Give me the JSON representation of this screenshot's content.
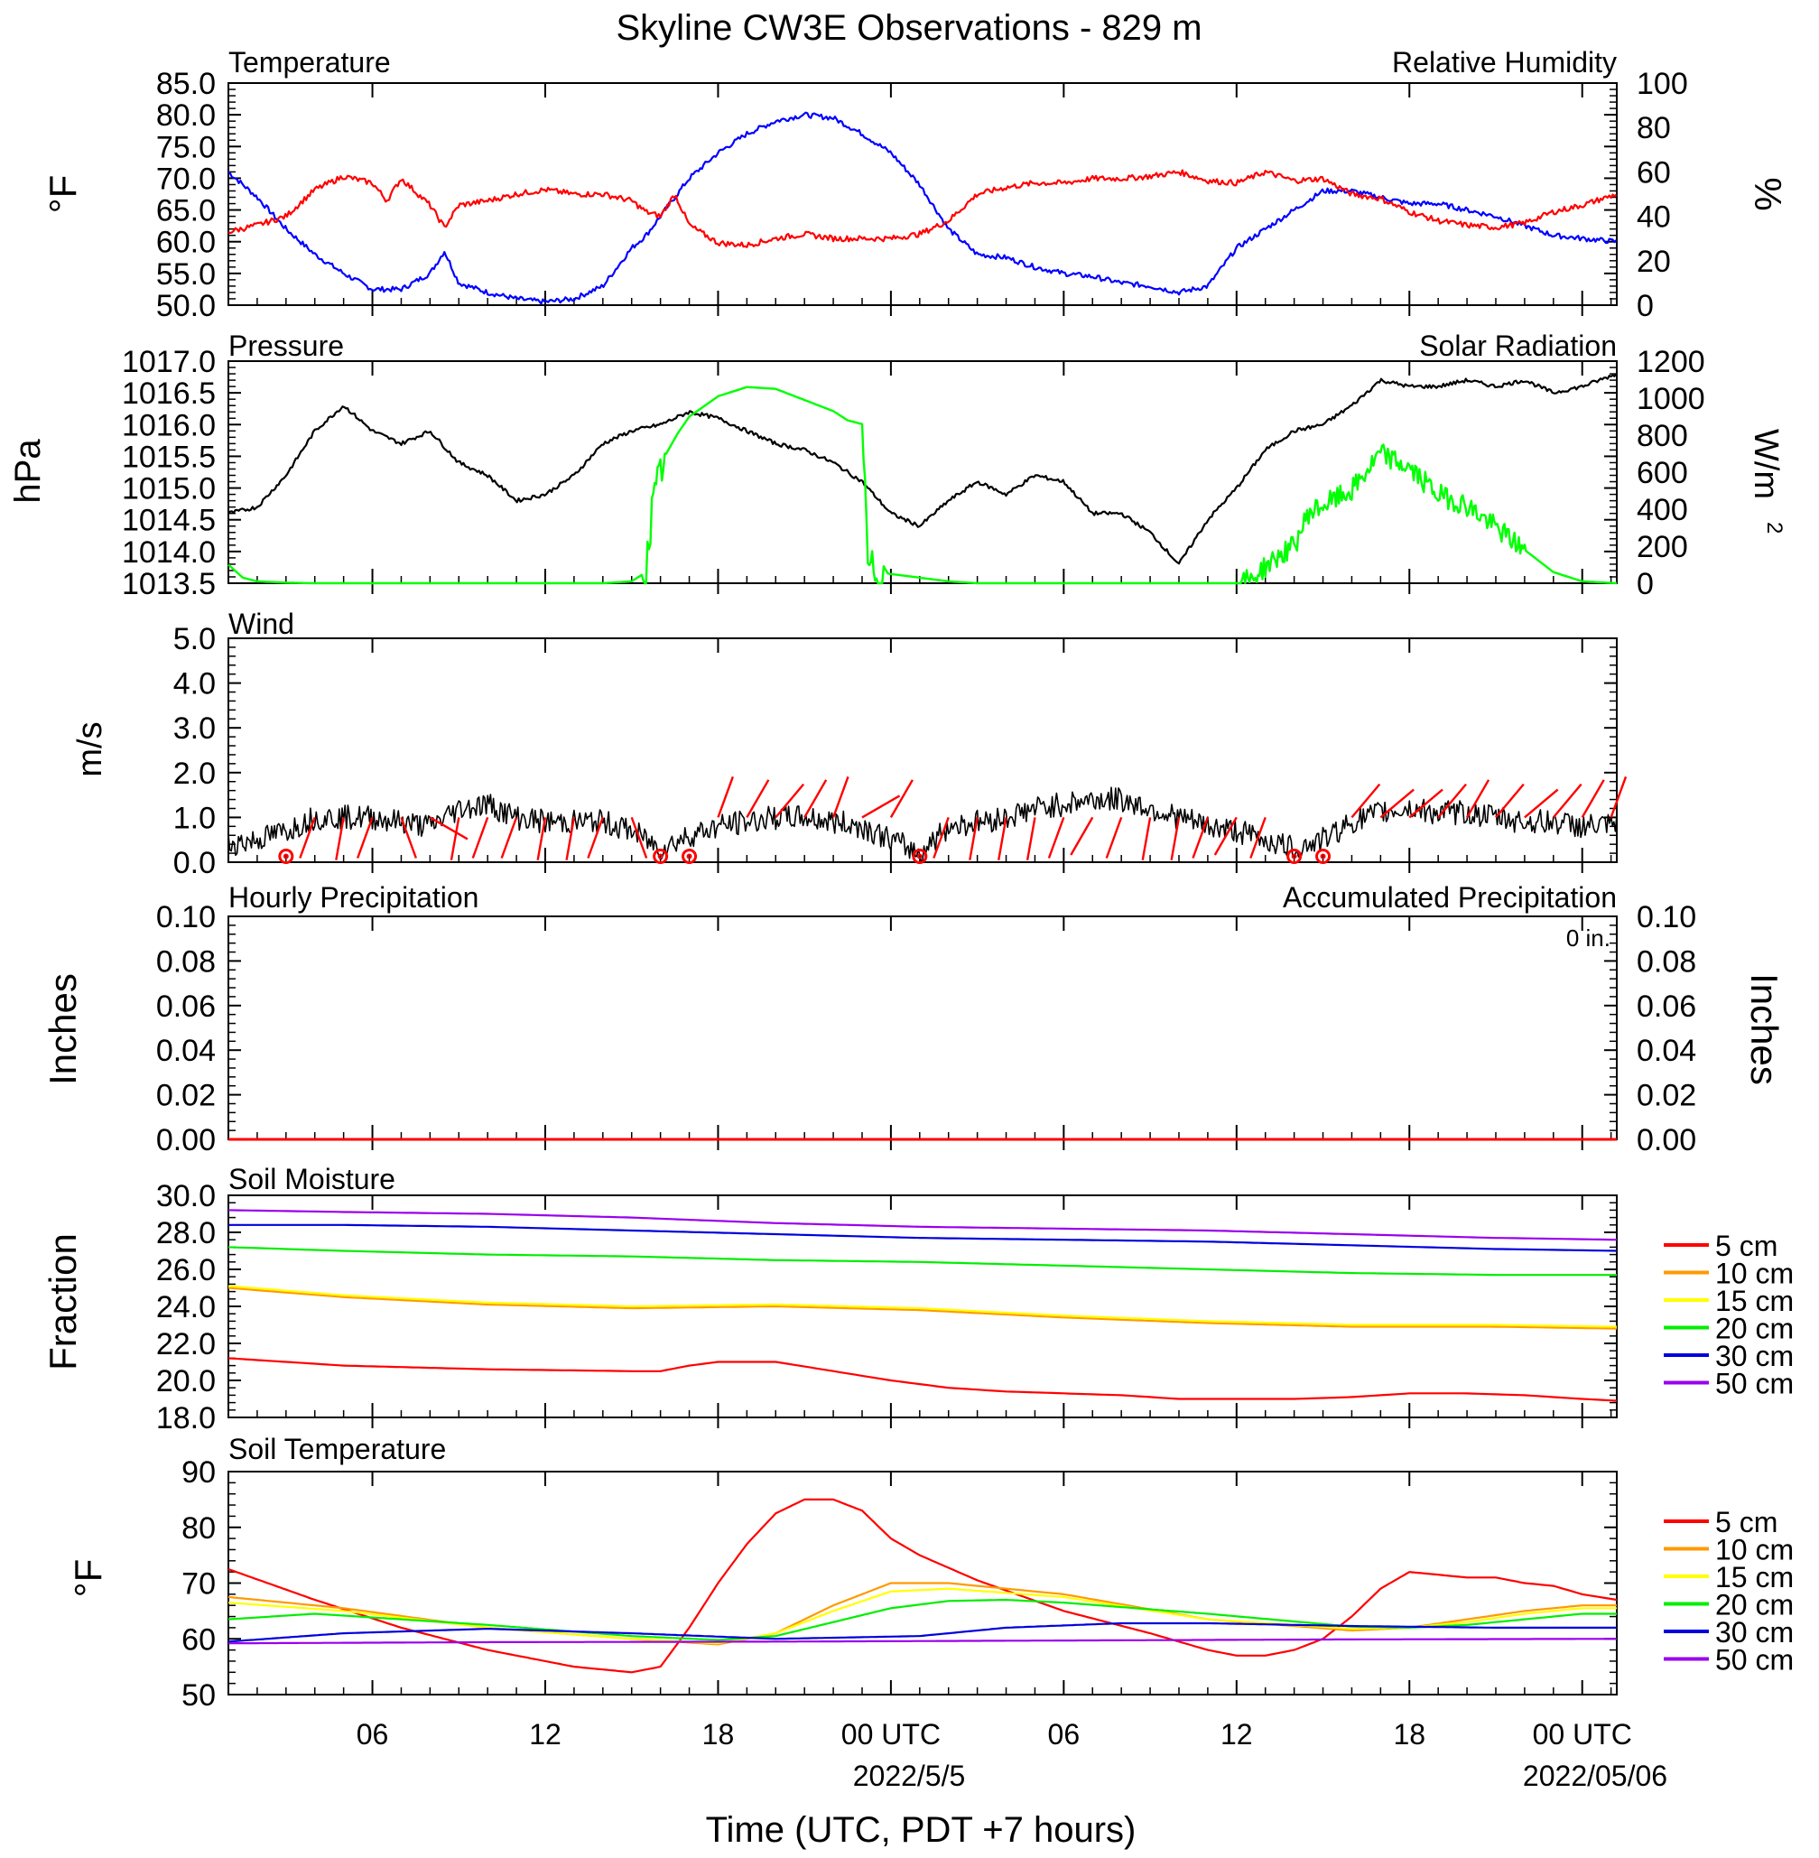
{
  "title": "Skyline CW3E Observations - 829 m",
  "xaxis": {
    "tick_labels": [
      "06",
      "12",
      "18",
      "00 UTC",
      "06",
      "12",
      "18",
      "00 UTC"
    ],
    "date_labels": [
      "2022/5/5",
      "2022/05/06"
    ],
    "label": "Time (UTC, PDT +7 hours)"
  },
  "colors": {
    "temperature": "#0000ff",
    "humidity": "#ff0000",
    "pressure": "#000000",
    "solar": "#00ff00",
    "wind": "#000000",
    "barb": "#ff0000",
    "hourly_precip": "#0000ff",
    "accum_precip": "#ff0000",
    "d5": "#ff0000",
    "d10": "#ff9900",
    "d15": "#ffff00",
    "d20": "#00ee00",
    "d30": "#0000dd",
    "d50": "#9900ee"
  },
  "panels": {
    "temp": {
      "left_title": "Temperature",
      "right_title": "Relative Humidity",
      "left_unit": "°F",
      "right_unit": "%",
      "left_ticks": [
        "85.0",
        "80.0",
        "75.0",
        "70.0",
        "65.0",
        "60.0",
        "55.0",
        "50.0"
      ],
      "right_ticks": [
        "100",
        "80",
        "60",
        "40",
        "20",
        "0"
      ]
    },
    "pres": {
      "left_title": "Pressure",
      "right_title": "Solar Radiation",
      "left_unit": "hPa",
      "right_unit": "W/m",
      "left_ticks": [
        "1017.0",
        "1016.5",
        "1016.0",
        "1015.5",
        "1015.0",
        "1014.5",
        "1014.0",
        "1013.5"
      ],
      "right_ticks": [
        "1200",
        "1000",
        "800",
        "600",
        "400",
        "200",
        "0"
      ]
    },
    "wind": {
      "left_title": "Wind",
      "left_unit": "m/s",
      "left_ticks": [
        "5.0",
        "4.0",
        "3.0",
        "2.0",
        "1.0",
        "0.0"
      ]
    },
    "precip": {
      "left_title": "Hourly Precipitation",
      "right_title": "Accumulated Precipitation",
      "total": "0 in.",
      "left_unit": "Inches",
      "right_unit": "Inches",
      "left_ticks": [
        "0.10",
        "0.08",
        "0.06",
        "0.04",
        "0.02",
        "0.00"
      ],
      "right_ticks": [
        "0.10",
        "0.08",
        "0.06",
        "0.04",
        "0.02",
        "0.00"
      ]
    },
    "soilm": {
      "left_title": "Soil Moisture",
      "left_unit": "Fraction",
      "left_ticks": [
        "30.0",
        "28.0",
        "26.0",
        "24.0",
        "22.0",
        "20.0",
        "18.0"
      ],
      "legend": [
        "5 cm",
        "10 cm",
        "15 cm",
        "20 cm",
        "30 cm",
        "50 cm"
      ]
    },
    "soilt": {
      "left_title": "Soil Temperature",
      "left_unit": "°F",
      "left_ticks": [
        "90",
        "80",
        "70",
        "60",
        "50"
      ],
      "legend": [
        "5 cm",
        "10 cm",
        "15 cm",
        "20 cm",
        "30 cm",
        "50 cm"
      ]
    }
  },
  "chart_data": {
    "type": "line",
    "x_range_hours": [
      1,
      49.2
    ],
    "x_note": "hours since 2022-05-04 00 UTC",
    "temperature_F": {
      "ylim": [
        50,
        85
      ],
      "x": [
        1,
        2,
        3,
        4,
        5,
        6,
        7,
        8,
        8.5,
        9,
        10,
        11,
        12,
        13,
        14,
        15,
        15.5,
        16,
        17,
        18,
        19,
        20,
        21,
        22,
        23,
        24,
        25,
        26,
        27,
        28,
        29,
        30,
        31,
        32,
        33,
        34,
        35,
        36,
        37,
        38,
        39,
        40,
        41,
        42,
        43,
        44,
        45,
        46,
        47,
        48,
        49.2
      ],
      "y": [
        71,
        67,
        62,
        58,
        55,
        52.5,
        52.5,
        55,
        58.5,
        53.5,
        52,
        51,
        50.5,
        51,
        53,
        59,
        61,
        64,
        70,
        74,
        77,
        79,
        80,
        79.5,
        77,
        74,
        69,
        62,
        58,
        57.5,
        56,
        55,
        54.5,
        53.5,
        53,
        52,
        53,
        59,
        62,
        65,
        68,
        68,
        67,
        66,
        66,
        65,
        64,
        62.5,
        61,
        60.5,
        60
      ]
    },
    "humidity_pct": {
      "ylim": [
        0,
        100
      ],
      "x": [
        1,
        2,
        3,
        4,
        5,
        6,
        6.5,
        7,
        8,
        8.5,
        9,
        10,
        11,
        12,
        13,
        14,
        15,
        15.5,
        16,
        16.5,
        17,
        18,
        19,
        20,
        21,
        22,
        23,
        24,
        25,
        26,
        27,
        28,
        29,
        30,
        31,
        32,
        33,
        34,
        35,
        36,
        37,
        38,
        39,
        40,
        41,
        42,
        43,
        44,
        45,
        46,
        47,
        48,
        49.2
      ],
      "y": [
        33,
        36,
        40,
        52,
        58,
        55,
        47,
        57,
        45,
        35,
        45,
        47,
        50,
        52,
        50,
        50,
        47,
        42,
        40,
        50,
        36,
        28,
        27,
        30,
        32,
        30,
        30,
        30,
        32,
        38,
        50,
        53,
        55,
        55,
        57,
        57,
        58,
        60,
        56,
        55,
        60,
        56,
        57,
        50,
        48,
        42,
        38,
        36,
        35,
        37,
        42,
        45,
        50
      ]
    },
    "pressure_hPa": {
      "ylim": [
        1013.5,
        1017
      ],
      "x": [
        1,
        2,
        3,
        4,
        5,
        6,
        7,
        8,
        9,
        10,
        11,
        12,
        13,
        14,
        15,
        16,
        17,
        18,
        19,
        20,
        21,
        22,
        23,
        24,
        25,
        26,
        27,
        28,
        29,
        30,
        31,
        32,
        33,
        34,
        35,
        36,
        37,
        38,
        39,
        40,
        41,
        42,
        43,
        44,
        45,
        46,
        47,
        48,
        49.2
      ],
      "y": [
        1014.6,
        1014.7,
        1015.2,
        1015.9,
        1016.3,
        1015.9,
        1015.7,
        1015.9,
        1015.4,
        1015.2,
        1014.8,
        1014.9,
        1015.2,
        1015.7,
        1015.9,
        1016.0,
        1016.2,
        1016.1,
        1015.9,
        1015.7,
        1015.6,
        1015.4,
        1015.1,
        1014.6,
        1014.4,
        1014.8,
        1015.1,
        1014.9,
        1015.2,
        1015.1,
        1014.6,
        1014.6,
        1014.3,
        1013.8,
        1014.5,
        1015.0,
        1015.6,
        1015.9,
        1016.0,
        1016.3,
        1016.7,
        1016.6,
        1016.6,
        1016.7,
        1016.6,
        1016.7,
        1016.5,
        1016.6,
        1016.8
      ]
    },
    "solar_W_m2": {
      "ylim": [
        0,
        1200
      ],
      "x": [
        1,
        1.5,
        2,
        3,
        4,
        5,
        6,
        7,
        8,
        9,
        10,
        11,
        12,
        13,
        14,
        15,
        15.5,
        15.7,
        16,
        16.2,
        16.6,
        17,
        18,
        19,
        20,
        21,
        22,
        22.5,
        23,
        23.2,
        23.4,
        24,
        25,
        26,
        27,
        28,
        29,
        30,
        31,
        32,
        33,
        34,
        35,
        36,
        36.5,
        37,
        37.5,
        38,
        38.5,
        39,
        40,
        41,
        42,
        43,
        44,
        45,
        46,
        47,
        48,
        49.2
      ],
      "y": [
        100,
        30,
        10,
        3,
        0,
        0,
        0,
        0,
        0,
        0,
        0,
        0,
        0,
        0,
        0,
        10,
        60,
        380,
        600,
        700,
        810,
        900,
        1010,
        1060,
        1050,
        990,
        930,
        880,
        860,
        100,
        60,
        50,
        30,
        10,
        0,
        0,
        0,
        0,
        0,
        0,
        0,
        0,
        0,
        0,
        20,
        90,
        150,
        200,
        380,
        420,
        500,
        700,
        620,
        480,
        420,
        300,
        180,
        60,
        10,
        0
      ]
    },
    "wind_speed_ms": {
      "ylim": [
        0,
        5
      ],
      "x": [
        1,
        2,
        3,
        4,
        5,
        6,
        7,
        8,
        9,
        10,
        11,
        12,
        13,
        14,
        15,
        16,
        17,
        18,
        19,
        20,
        21,
        22,
        23,
        24,
        25,
        26,
        27,
        28,
        29,
        30,
        31,
        32,
        33,
        34,
        35,
        36,
        37,
        38,
        39,
        40,
        41,
        42,
        43,
        44,
        45,
        46,
        47,
        48,
        49.2
      ],
      "y": [
        0.4,
        0.5,
        0.7,
        1.0,
        1.0,
        1.0,
        0.9,
        0.8,
        1.2,
        1.3,
        1.0,
        0.9,
        0.9,
        0.9,
        0.7,
        0.3,
        0.6,
        0.8,
        0.9,
        1.0,
        1.0,
        0.9,
        0.8,
        0.5,
        0.2,
        0.8,
        0.9,
        1.0,
        1.2,
        1.3,
        1.4,
        1.4,
        1.2,
        1.0,
        0.8,
        0.7,
        0.5,
        0.3,
        0.5,
        0.9,
        1.1,
        1.2,
        1.1,
        1.1,
        1.0,
        0.9,
        0.9,
        0.8,
        0.8
      ]
    },
    "wind_barbs": {
      "x": [
        3,
        4,
        5,
        6,
        7,
        8,
        9,
        10,
        11,
        12,
        13,
        14,
        15,
        16,
        17,
        18,
        19,
        20,
        21,
        22,
        23,
        24,
        25,
        26,
        27,
        28,
        29,
        30,
        31,
        32,
        33,
        34,
        35,
        36,
        37,
        38,
        39,
        40,
        41,
        42,
        43,
        44,
        45,
        46,
        47,
        48,
        49
      ],
      "calm": [
        true,
        false,
        false,
        false,
        false,
        false,
        false,
        false,
        false,
        false,
        false,
        false,
        false,
        true,
        true,
        false,
        false,
        false,
        false,
        false,
        false,
        false,
        true,
        false,
        false,
        false,
        false,
        false,
        false,
        false,
        false,
        false,
        false,
        false,
        false,
        true,
        true,
        false,
        false,
        false,
        false,
        false,
        false,
        false,
        false,
        false,
        false
      ],
      "dir_deg": [
        0,
        200,
        190,
        200,
        160,
        120,
        190,
        200,
        200,
        190,
        190,
        200,
        160,
        0,
        0,
        20,
        30,
        40,
        30,
        20,
        60,
        30,
        0,
        200,
        190,
        190,
        190,
        200,
        210,
        200,
        190,
        190,
        200,
        210,
        200,
        0,
        0,
        40,
        50,
        50,
        40,
        30,
        40,
        50,
        40,
        30,
        20
      ]
    },
    "hourly_precip_in": {
      "ylim": [
        0,
        0.1
      ],
      "value": 0
    },
    "accum_precip_in": {
      "ylim": [
        0,
        0.1
      ],
      "value": 0
    },
    "soil_moisture": {
      "ylim": [
        18,
        30
      ],
      "series": [
        {
          "name": "5 cm",
          "x": [
            1,
            5,
            10,
            15,
            16,
            17,
            18,
            20,
            22,
            24,
            26,
            28,
            30,
            32,
            34,
            36,
            38,
            40,
            42,
            44,
            46,
            48,
            49.2
          ],
          "y": [
            21.2,
            20.8,
            20.6,
            20.5,
            20.5,
            20.8,
            21.0,
            21.0,
            20.5,
            20.0,
            19.6,
            19.4,
            19.3,
            19.2,
            19.0,
            19.0,
            19.0,
            19.1,
            19.3,
            19.3,
            19.2,
            19.0,
            18.9
          ]
        },
        {
          "name": "10 cm",
          "x": [
            1,
            5,
            10,
            15,
            20,
            25,
            30,
            35,
            40,
            45,
            49.2
          ],
          "y": [
            25.0,
            24.5,
            24.1,
            23.9,
            24.0,
            23.8,
            23.4,
            23.1,
            22.9,
            22.9,
            22.8
          ]
        },
        {
          "name": "15 cm",
          "x": [
            1,
            5,
            10,
            15,
            20,
            25,
            30,
            35,
            40,
            45,
            49.2
          ],
          "y": [
            25.1,
            24.6,
            24.2,
            24.0,
            24.1,
            23.9,
            23.5,
            23.2,
            23.0,
            23.0,
            22.9
          ]
        },
        {
          "name": "20 cm",
          "x": [
            1,
            5,
            10,
            15,
            20,
            25,
            30,
            35,
            40,
            45,
            49.2
          ],
          "y": [
            27.2,
            27.0,
            26.8,
            26.7,
            26.5,
            26.4,
            26.2,
            26.0,
            25.8,
            25.7,
            25.7
          ]
        },
        {
          "name": "30 cm",
          "x": [
            1,
            5,
            10,
            15,
            20,
            25,
            30,
            35,
            40,
            45,
            49.2
          ],
          "y": [
            28.4,
            28.4,
            28.3,
            28.1,
            27.9,
            27.7,
            27.6,
            27.5,
            27.3,
            27.1,
            27.0
          ]
        },
        {
          "name": "50 cm",
          "x": [
            1,
            5,
            10,
            15,
            20,
            25,
            30,
            35,
            40,
            45,
            49.2
          ],
          "y": [
            29.2,
            29.1,
            29.0,
            28.8,
            28.5,
            28.3,
            28.2,
            28.1,
            27.9,
            27.7,
            27.6
          ]
        }
      ]
    },
    "soil_temperature_F": {
      "ylim": [
        50,
        90
      ],
      "series": [
        {
          "name": "5 cm",
          "x": [
            1,
            4,
            7,
            10,
            13,
            15,
            16,
            17,
            18,
            19,
            20,
            21,
            22,
            23,
            24,
            25,
            27,
            30,
            33,
            35,
            36,
            37,
            38,
            39,
            40,
            41,
            42,
            43,
            44,
            45,
            46,
            47,
            48,
            49.2
          ],
          "y": [
            72.5,
            67,
            62,
            58,
            55,
            54,
            55,
            62,
            70,
            77,
            82.5,
            85,
            85,
            83,
            78,
            75,
            70.5,
            65,
            61,
            58,
            57,
            57,
            58,
            60,
            64,
            69,
            72,
            71.5,
            71,
            71,
            70,
            69.5,
            68,
            67
          ]
        },
        {
          "name": "10 cm",
          "x": [
            1,
            5,
            10,
            15,
            18,
            20,
            22,
            24,
            26,
            30,
            35,
            40,
            42,
            44,
            46,
            48,
            49.2
          ],
          "y": [
            67.5,
            65.5,
            62,
            60,
            59,
            61,
            66,
            70,
            70,
            68,
            63.5,
            61.5,
            62,
            63.5,
            65,
            66,
            66
          ]
        },
        {
          "name": "15 cm",
          "x": [
            1,
            5,
            10,
            15,
            18,
            20,
            22,
            24,
            26,
            30,
            35,
            40,
            42,
            44,
            46,
            48,
            49.2
          ],
          "y": [
            66.5,
            65,
            62,
            60,
            59.2,
            61,
            65,
            68.5,
            69,
            67.5,
            63.5,
            61.8,
            62,
            63,
            64.5,
            65.5,
            65.5
          ]
        },
        {
          "name": "20 cm",
          "x": [
            1,
            4,
            10,
            15,
            18,
            20,
            22,
            24,
            26,
            28,
            30,
            35,
            40,
            42,
            44,
            46,
            48,
            49.2
          ],
          "y": [
            63.5,
            64.5,
            62.5,
            60.5,
            59.8,
            60.5,
            63,
            65.5,
            66.8,
            67,
            66.5,
            64.5,
            62.2,
            62,
            62.5,
            63.5,
            64.5,
            64.5
          ]
        },
        {
          "name": "30 cm",
          "x": [
            1,
            5,
            10,
            15,
            20,
            25,
            28,
            32,
            35,
            40,
            45,
            49.2
          ],
          "y": [
            59.5,
            61,
            61.8,
            61,
            60,
            60.5,
            62,
            62.8,
            62.8,
            62.3,
            62,
            62
          ]
        },
        {
          "name": "50 cm",
          "x": [
            1,
            10,
            20,
            30,
            40,
            49.2
          ],
          "y": [
            59.2,
            59.4,
            59.5,
            59.7,
            59.9,
            60
          ]
        }
      ]
    }
  }
}
